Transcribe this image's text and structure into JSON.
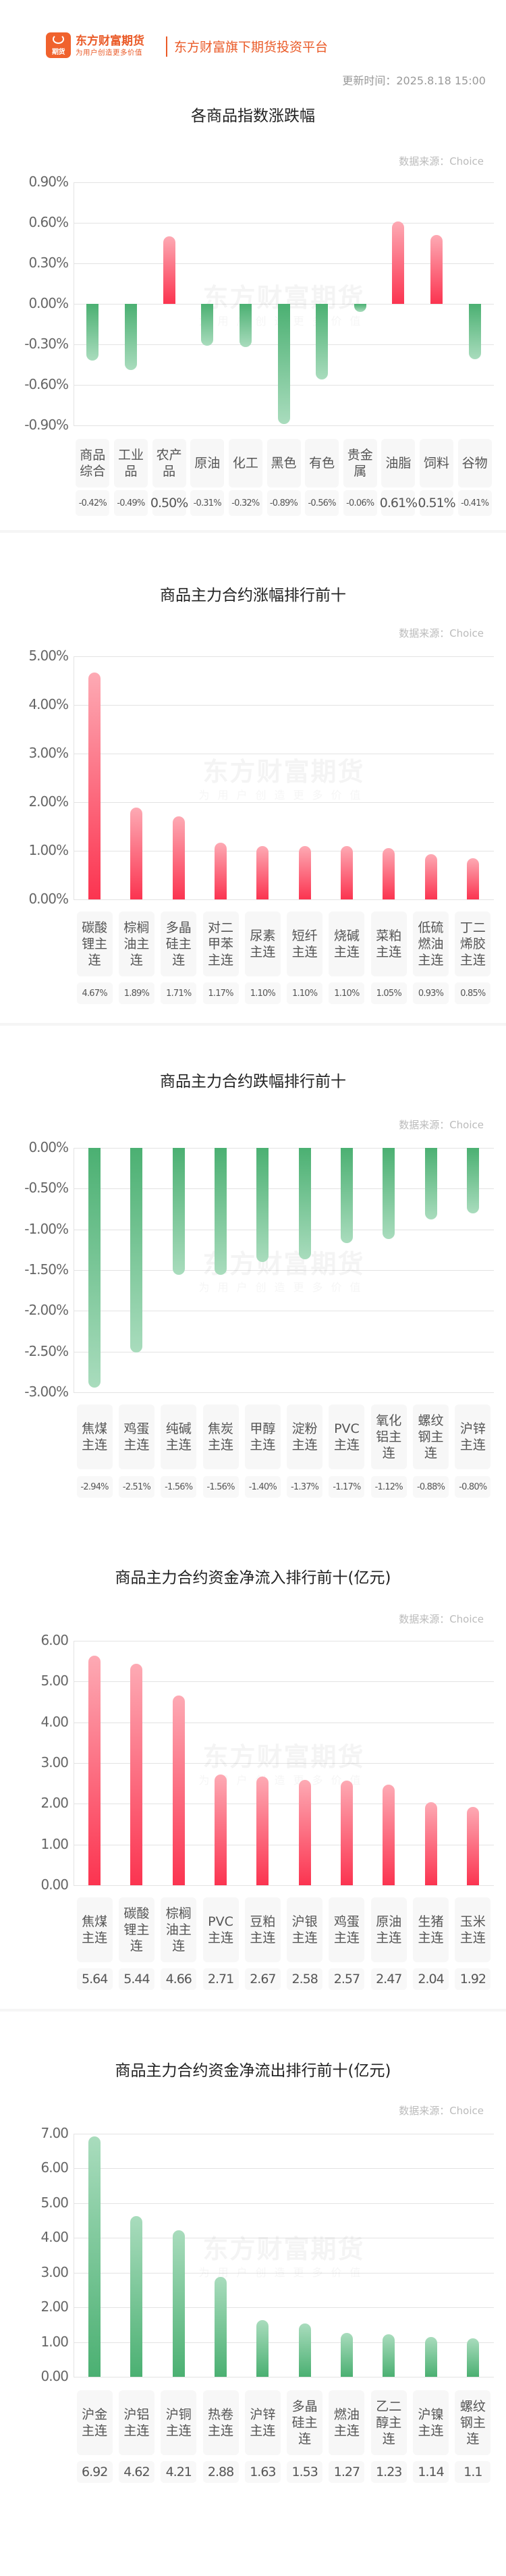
{
  "header": {
    "logo_icon": "eastmoney-futures-logo-icon",
    "logo_badge_text": "期货",
    "brand_name": "东方财富期货",
    "brand_slogan": "为用户创造更多价值",
    "platform_text": "东方财富旗下期货投资平台",
    "update_time": "更新时间：2025.8.18 15:00",
    "brand_color": "#ea5a27"
  },
  "watermark": {
    "main": "东方财富期货",
    "sub": "为用户创造更多价值"
  },
  "colors": {
    "up": "#fb3450",
    "down": "#4bb072"
  },
  "sections": [
    {
      "title": "各商品指数涨跌幅",
      "source": "数据来源：Choice"
    },
    {
      "title": "商品主力合约涨幅排行前十",
      "source": "数据来源：Choice"
    },
    {
      "title": "商品主力合约跌幅排行前十",
      "source": "数据来源：Choice"
    },
    {
      "title": "商品主力合约资金净流入排行前十(亿元)",
      "source": "数据来源：Choice"
    },
    {
      "title": "商品主力合约资金净流出排行前十(亿元)",
      "source": "数据来源：Choice"
    }
  ],
  "chart_data": [
    {
      "type": "bar",
      "title": "各商品指数涨跌幅",
      "categories": [
        "商品综合",
        "工业品",
        "农产品",
        "原油",
        "化工",
        "黑色",
        "有色",
        "贵金属",
        "油脂",
        "饲料",
        "谷物"
      ],
      "values": [
        -0.42,
        -0.49,
        0.5,
        -0.31,
        -0.32,
        -0.89,
        -0.56,
        -0.06,
        0.61,
        0.51,
        -0.41
      ],
      "value_labels": [
        "-0.42%",
        "-0.49%",
        "0.50%",
        "-0.31%",
        "-0.32%",
        "-0.89%",
        "-0.56%",
        "-0.06%",
        "0.61%",
        "0.51%",
        "-0.41%"
      ],
      "yticks": [
        "0.90%",
        "0.60%",
        "0.30%",
        "0.00%",
        "-0.30%",
        "-0.60%",
        "-0.90%"
      ],
      "ylim": [
        -0.9,
        0.9
      ],
      "xlabel": "",
      "ylabel": "",
      "grid": true,
      "unit": "%"
    },
    {
      "type": "bar",
      "title": "商品主力合约涨幅排行前十",
      "categories": [
        "碳酸锂主连",
        "棕榈油主连",
        "多晶硅主连",
        "对二甲苯主连",
        "尿素主连",
        "短纤主连",
        "烧碱主连",
        "菜粕主连",
        "低硫燃油主连",
        "丁二烯胶主连"
      ],
      "values": [
        4.67,
        1.89,
        1.71,
        1.17,
        1.1,
        1.1,
        1.1,
        1.05,
        0.93,
        0.85
      ],
      "value_labels": [
        "4.67%",
        "1.89%",
        "1.71%",
        "1.17%",
        "1.10%",
        "1.10%",
        "1.10%",
        "1.05%",
        "0.93%",
        "0.85%"
      ],
      "yticks": [
        "5.00%",
        "4.00%",
        "3.00%",
        "2.00%",
        "1.00%",
        "0.00%"
      ],
      "ylim": [
        0,
        5
      ],
      "xlabel": "",
      "ylabel": "",
      "grid": true,
      "unit": "%"
    },
    {
      "type": "bar",
      "title": "商品主力合约跌幅排行前十",
      "categories": [
        "焦煤主连",
        "鸡蛋主连",
        "纯碱主连",
        "焦炭主连",
        "甲醇主连",
        "淀粉主连",
        "PVC主连",
        "氧化铝主连",
        "螺纹钢主连",
        "沪锌主连"
      ],
      "values": [
        -2.94,
        -2.51,
        -1.56,
        -1.56,
        -1.4,
        -1.37,
        -1.17,
        -1.12,
        -0.88,
        -0.8
      ],
      "value_labels": [
        "-2.94%",
        "-2.51%",
        "-1.56%",
        "-1.56%",
        "-1.40%",
        "-1.37%",
        "-1.17%",
        "-1.12%",
        "-0.88%",
        "-0.80%"
      ],
      "yticks": [
        "0.00%",
        "-0.50%",
        "-1.00%",
        "-1.50%",
        "-2.00%",
        "-2.50%",
        "-3.00%"
      ],
      "ylim": [
        -3,
        0
      ],
      "xlabel": "",
      "ylabel": "",
      "grid": true,
      "unit": "%"
    },
    {
      "type": "bar",
      "title": "商品主力合约资金净流入排行前十(亿元)",
      "categories": [
        "焦煤主连",
        "碳酸锂主连",
        "棕榈油主连",
        "PVC主连",
        "豆粕主连",
        "沪银主连",
        "鸡蛋主连",
        "原油主连",
        "生猪主连",
        "玉米主连"
      ],
      "values": [
        5.64,
        5.44,
        4.66,
        2.71,
        2.67,
        2.58,
        2.57,
        2.47,
        2.04,
        1.92
      ],
      "value_labels": [
        "5.64",
        "5.44",
        "4.66",
        "2.71",
        "2.67",
        "2.58",
        "2.57",
        "2.47",
        "2.04",
        "1.92"
      ],
      "yticks": [
        "6.00",
        "5.00",
        "4.00",
        "3.00",
        "2.00",
        "1.00",
        "0.00"
      ],
      "ylim": [
        0,
        6
      ],
      "xlabel": "",
      "ylabel": "",
      "grid": true,
      "unit": "亿元"
    },
    {
      "type": "bar",
      "title": "商品主力合约资金净流出排行前十(亿元)",
      "categories": [
        "沪金主连",
        "沪铝主连",
        "沪铜主连",
        "热卷主连",
        "沪锌主连",
        "多晶硅主连",
        "燃油主连",
        "乙二醇主连",
        "沪镍主连",
        "螺纹钢主连"
      ],
      "values": [
        6.92,
        4.62,
        4.21,
        2.88,
        1.63,
        1.53,
        1.27,
        1.23,
        1.14,
        1.1
      ],
      "value_labels": [
        "6.92",
        "4.62",
        "4.21",
        "2.88",
        "1.63",
        "1.53",
        "1.27",
        "1.23",
        "1.14",
        "1.1"
      ],
      "yticks": [
        "7.00",
        "6.00",
        "5.00",
        "4.00",
        "3.00",
        "2.00",
        "1.00",
        "0.00"
      ],
      "ylim": [
        0,
        7
      ],
      "xlabel": "",
      "ylabel": "",
      "grid": true,
      "unit": "亿元"
    }
  ]
}
